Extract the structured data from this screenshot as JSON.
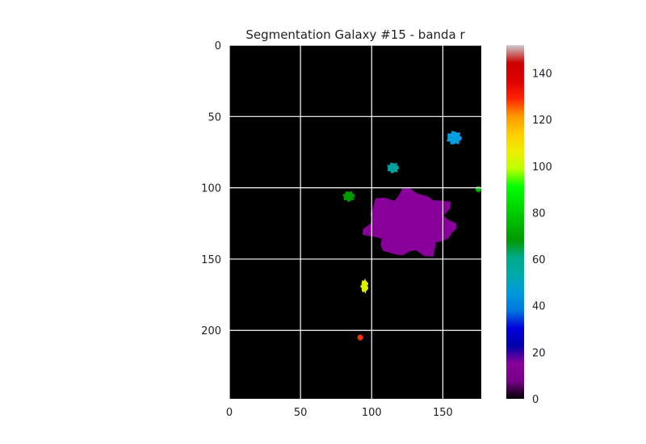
{
  "chart_data": {
    "type": "heatmap",
    "title": "Segmentation Galaxy #15 - banda r",
    "image_width": 177,
    "image_height": 248,
    "xlim": [
      0,
      177
    ],
    "ylim": [
      248,
      0
    ],
    "x_ticks": [
      0,
      50,
      100,
      150
    ],
    "y_ticks": [
      0,
      50,
      100,
      150,
      200
    ],
    "grid": true,
    "background_value": 0,
    "colormap": "nipy_spectral",
    "colorbar": {
      "range": [
        0,
        152
      ],
      "ticks": [
        0,
        20,
        40,
        60,
        80,
        100,
        120,
        140
      ],
      "placement": "right"
    },
    "segments": [
      {
        "label": 10,
        "color": "#880099",
        "cx": 127,
        "cy": 125,
        "rx": 30,
        "ry": 22
      },
      {
        "label": 45,
        "color": "#00a0e0",
        "cx": 158,
        "cy": 65,
        "rx": 5,
        "ry": 4.5
      },
      {
        "label": 62,
        "color": "#00a0a0",
        "cx": 115,
        "cy": 86,
        "rx": 4,
        "ry": 3.5
      },
      {
        "label": 72,
        "color": "#009900",
        "cx": 84,
        "cy": 106,
        "rx": 4,
        "ry": 3.5
      },
      {
        "label": 75,
        "color": "#00bb00",
        "cx": 175,
        "cy": 101,
        "rx": 2,
        "ry": 2
      },
      {
        "label": 103,
        "color": "#ddee00",
        "cx": 95,
        "cy": 169,
        "rx": 2.5,
        "ry": 4.5
      },
      {
        "label": 134,
        "color": "#ff3300",
        "cx": 92,
        "cy": 205,
        "rx": 2,
        "ry": 2
      }
    ]
  }
}
